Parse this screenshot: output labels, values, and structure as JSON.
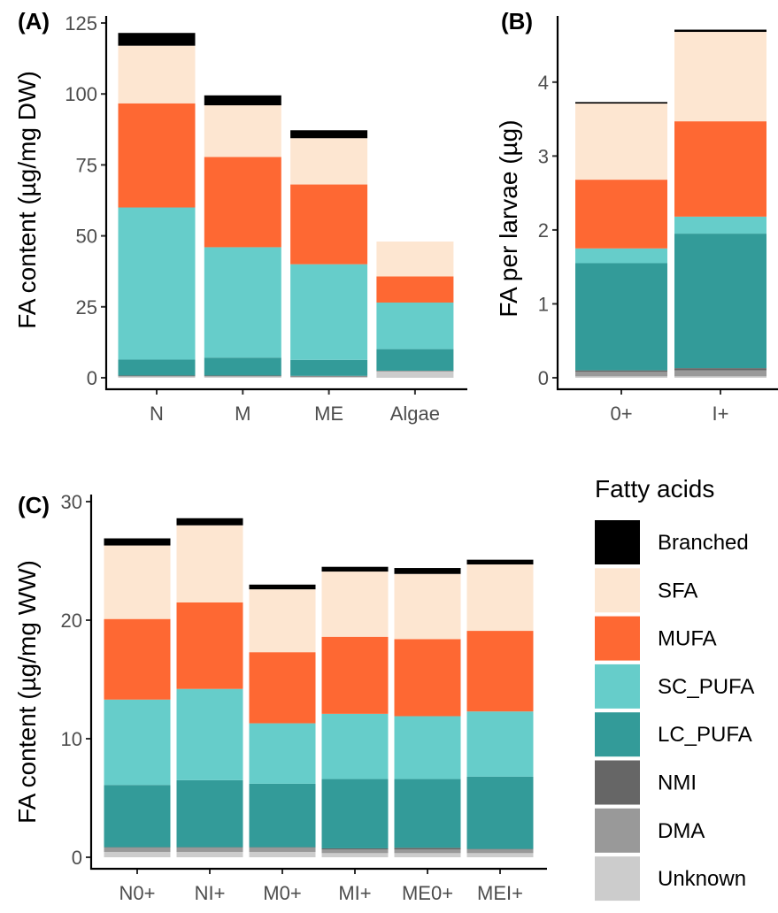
{
  "colors": {
    "Branched": "#000000",
    "SFA": "#FDE6D1",
    "MUFA": "#FE6833",
    "SC_PUFA": "#66CDCA",
    "LC_PUFA": "#339B99",
    "NMI": "#666666",
    "DMA": "#999999",
    "Unknown": "#CCCCCC"
  },
  "legend": {
    "title": "Fatty acids",
    "items": [
      "Branched",
      "SFA",
      "MUFA",
      "SC_PUFA",
      "LC_PUFA",
      "NMI",
      "DMA",
      "Unknown"
    ]
  },
  "chart_data": [
    {
      "type": "bar",
      "stacked": true,
      "panel_label": "(A)",
      "xlabel": "",
      "ylabel": "FA content (µg/mg DW)",
      "ylim": [
        0,
        125
      ],
      "yticks": [
        0,
        25,
        50,
        75,
        100,
        125
      ],
      "categories": [
        "N",
        "M",
        "ME",
        "Algae"
      ],
      "series": [
        {
          "name": "Unknown",
          "values": [
            0.4,
            0.4,
            0.3,
            2.2
          ]
        },
        {
          "name": "DMA",
          "values": [
            0.2,
            0.2,
            0.2,
            0.2
          ]
        },
        {
          "name": "NMI",
          "values": [
            0.2,
            0.2,
            0.2,
            0.1
          ]
        },
        {
          "name": "LC_PUFA",
          "values": [
            5.6,
            6.3,
            5.6,
            7.6
          ]
        },
        {
          "name": "SC_PUFA",
          "values": [
            53.6,
            38.9,
            33.7,
            16.4
          ]
        },
        {
          "name": "MUFA",
          "values": [
            36.7,
            31.8,
            28.1,
            9.2
          ]
        },
        {
          "name": "SFA",
          "values": [
            20.3,
            18.2,
            16.3,
            12.3
          ]
        },
        {
          "name": "Branched",
          "values": [
            4.5,
            3.5,
            2.8,
            0.0
          ]
        }
      ]
    },
    {
      "type": "bar",
      "stacked": true,
      "panel_label": "(B)",
      "xlabel": "",
      "ylabel": "FA per larvae (µg)",
      "ylim": [
        0,
        4.8
      ],
      "yticks": [
        0,
        1,
        2,
        3,
        4
      ],
      "categories": [
        "0+",
        "I+"
      ],
      "series": [
        {
          "name": "Unknown",
          "values": [
            0.02,
            0.02
          ]
        },
        {
          "name": "DMA",
          "values": [
            0.06,
            0.08
          ]
        },
        {
          "name": "NMI",
          "values": [
            0.02,
            0.03
          ]
        },
        {
          "name": "LC_PUFA",
          "values": [
            1.45,
            1.82
          ]
        },
        {
          "name": "SC_PUFA",
          "values": [
            0.2,
            0.23
          ]
        },
        {
          "name": "MUFA",
          "values": [
            0.93,
            1.29
          ]
        },
        {
          "name": "SFA",
          "values": [
            1.03,
            1.21
          ]
        },
        {
          "name": "Branched",
          "values": [
            0.02,
            0.03
          ]
        }
      ]
    },
    {
      "type": "bar",
      "stacked": true,
      "panel_label": "(C)",
      "xlabel": "",
      "ylabel": "FA content (µg/mg WW)",
      "ylim": [
        0,
        30
      ],
      "yticks": [
        0,
        10,
        20,
        30
      ],
      "categories": [
        "N0+",
        "NI+",
        "M0+",
        "MI+",
        "ME0+",
        "MEI+"
      ],
      "series": [
        {
          "name": "Unknown",
          "values": [
            0.45,
            0.45,
            0.45,
            0.35,
            0.35,
            0.35
          ]
        },
        {
          "name": "DMA",
          "values": [
            0.35,
            0.35,
            0.35,
            0.3,
            0.3,
            0.3
          ]
        },
        {
          "name": "NMI",
          "values": [
            0.05,
            0.05,
            0.05,
            0.1,
            0.15,
            0.05
          ]
        },
        {
          "name": "LC_PUFA",
          "values": [
            5.25,
            5.65,
            5.35,
            5.85,
            5.8,
            6.1
          ]
        },
        {
          "name": "SC_PUFA",
          "values": [
            7.2,
            7.7,
            5.1,
            5.5,
            5.3,
            5.5
          ]
        },
        {
          "name": "MUFA",
          "values": [
            6.8,
            7.3,
            6.0,
            6.5,
            6.5,
            6.8
          ]
        },
        {
          "name": "SFA",
          "values": [
            6.2,
            6.5,
            5.3,
            5.5,
            5.5,
            5.6
          ]
        },
        {
          "name": "Branched",
          "values": [
            0.6,
            0.6,
            0.4,
            0.4,
            0.5,
            0.4
          ]
        }
      ]
    }
  ]
}
